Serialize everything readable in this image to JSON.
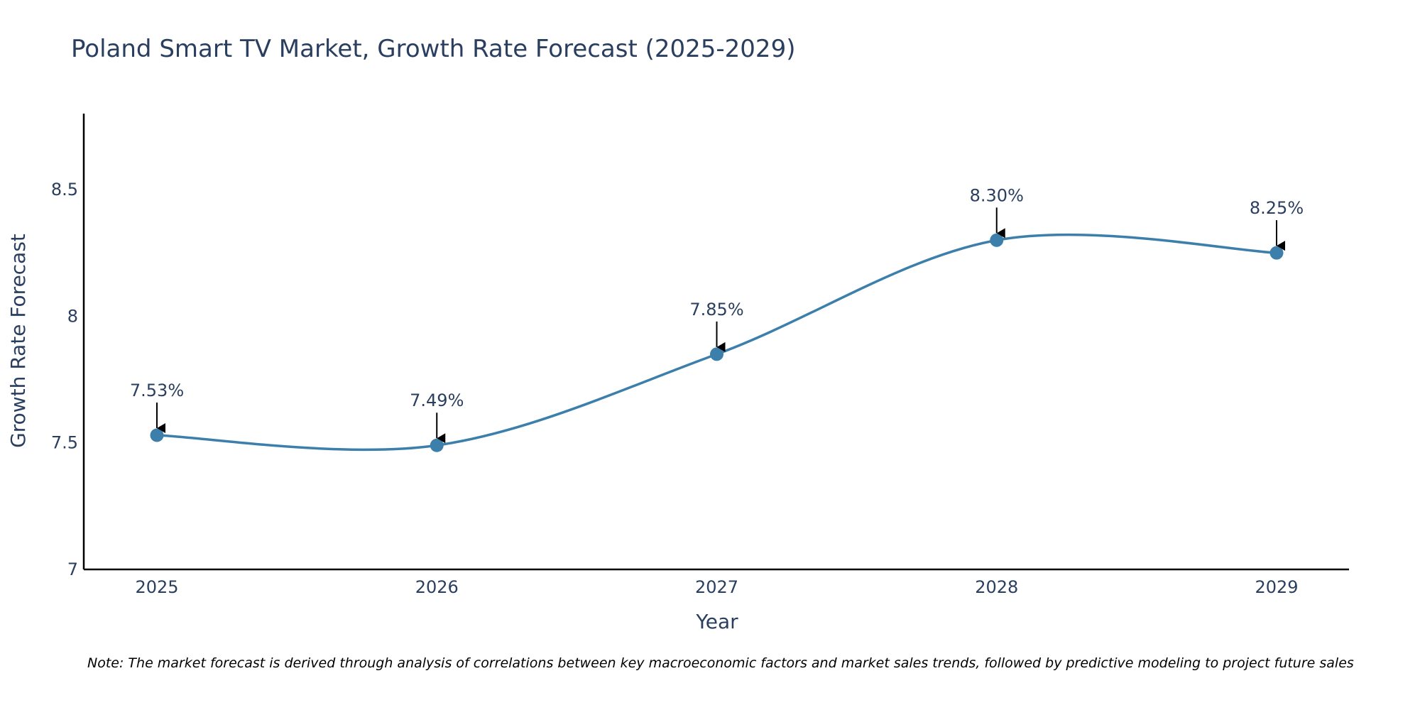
{
  "chart_data": {
    "type": "line",
    "title": "Poland Smart TV Market, Growth Rate Forecast (2025-2029)",
    "xlabel": "Year",
    "ylabel": "Growth Rate Forecast",
    "categories": [
      "2025",
      "2026",
      "2027",
      "2028",
      "2029"
    ],
    "series": [
      {
        "name": "Growth Rate Forecast",
        "values": [
          7.53,
          7.49,
          7.85,
          8.3,
          8.25
        ],
        "labels": [
          "7.53%",
          "7.49%",
          "7.85%",
          "8.30%",
          "8.25%"
        ]
      }
    ],
    "ylim": [
      7,
      8.8
    ],
    "yticks": [
      7,
      7.5,
      8,
      8.5
    ],
    "ytick_labels": [
      "7",
      "7.5",
      "8",
      "8.5"
    ],
    "grid": false,
    "line_shape": "spline",
    "colors": {
      "line": "#3c7fab",
      "marker": "#3c7fab",
      "axis": "#000000",
      "text": "#2a3f5f",
      "arrow": "#000000"
    },
    "note": "Note: The market forecast is derived through analysis of correlations between key macroeconomic factors and market sales trends, followed by predictive modeling to project future sales"
  }
}
